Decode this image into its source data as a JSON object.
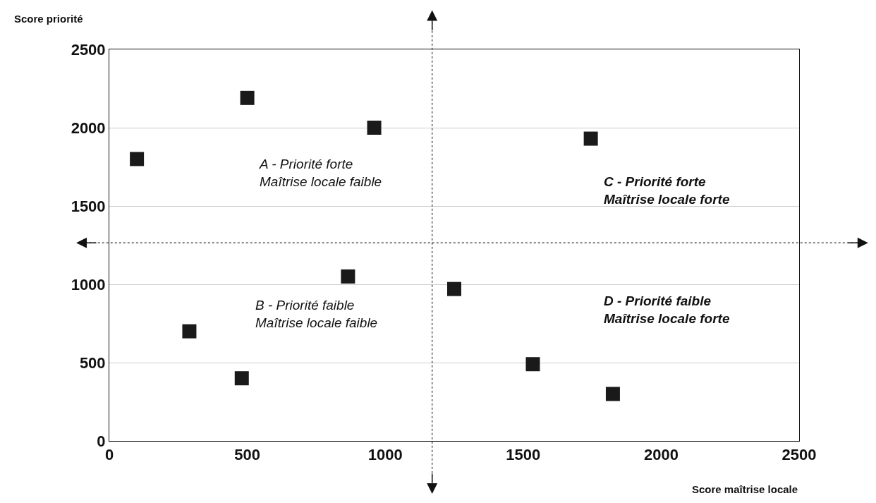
{
  "chart_data": {
    "type": "scatter",
    "xlabel": "Score maîtrise locale",
    "ylabel": "Score priorité",
    "x": [
      100,
      500,
      960,
      290,
      480,
      865,
      1250,
      1535,
      1745,
      1825
    ],
    "series": [
      {
        "color": "#1a1a1a",
        "values": [
          1800,
          2190,
          2000,
          700,
          400,
          1050,
          970,
          490,
          1930,
          300
        ]
      }
    ],
    "xlim": [
      0,
      2500
    ],
    "xticks": [
      0,
      500,
      1000,
      1500,
      2000,
      2500
    ],
    "ylim": [
      0,
      2500
    ],
    "yticks": [
      0,
      500,
      1000,
      1500,
      2000,
      2500
    ],
    "grid": "y",
    "marker": "square",
    "legend": false,
    "ref_lines": [
      {
        "axis": "x",
        "value": 1170,
        "line_style": "dotted",
        "color": "#333333"
      },
      {
        "axis": "y",
        "value": 1265,
        "line_style": "dotted",
        "color": "#333333"
      }
    ],
    "annotations": [
      "A - Priorité forte\nMaîtrise locale faible",
      "B - Priorité faible\nMaîtrise locale faible",
      "C - Priorité forte\nMaîtrise locale forte",
      "D - Priorité faible\nMaîtrise locale forte"
    ]
  }
}
